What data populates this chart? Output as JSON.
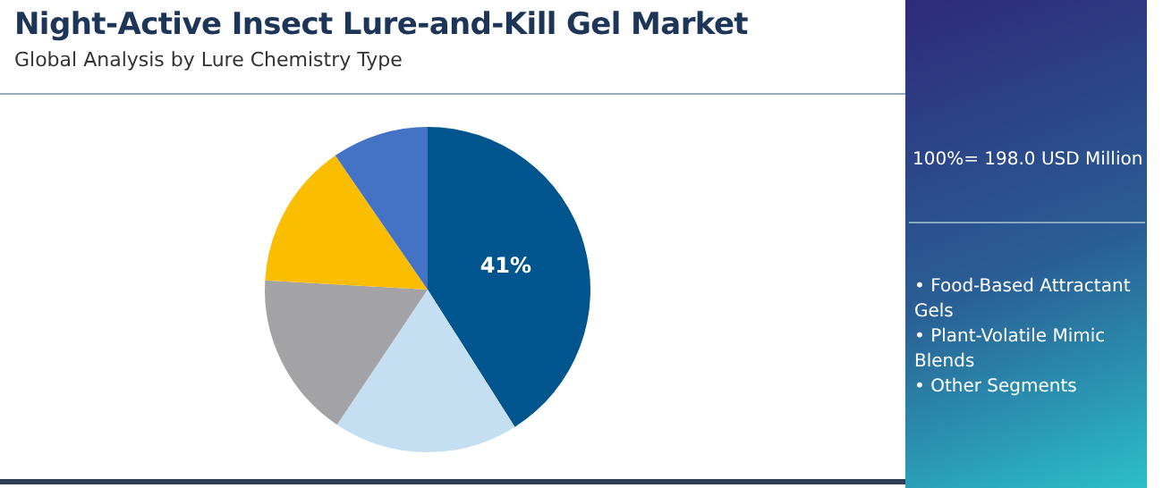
{
  "chart_data": {
    "type": "pie",
    "title": "Night-Active Insect Lure-and-Kill Gel Market",
    "subtitle": "Global Analysis by Lure Chemistry Type",
    "categories": [
      null,
      null,
      null,
      null,
      null
    ],
    "values": [
      41,
      18.4,
      16.5,
      14.5,
      9.6
    ],
    "colors": [
      "#01558f",
      "#c4dff2",
      "#a3a2a5",
      "#fbbd00",
      "#4472c4"
    ],
    "value_labels": [
      "41%",
      null,
      null,
      null,
      null
    ],
    "legend": false,
    "annotations": [
      "100%= 198.0 USD Million",
      "• Food-Based Attractant Gels",
      "• Plant-Volatile Mimic Blends",
      "• Other Segments"
    ]
  }
}
